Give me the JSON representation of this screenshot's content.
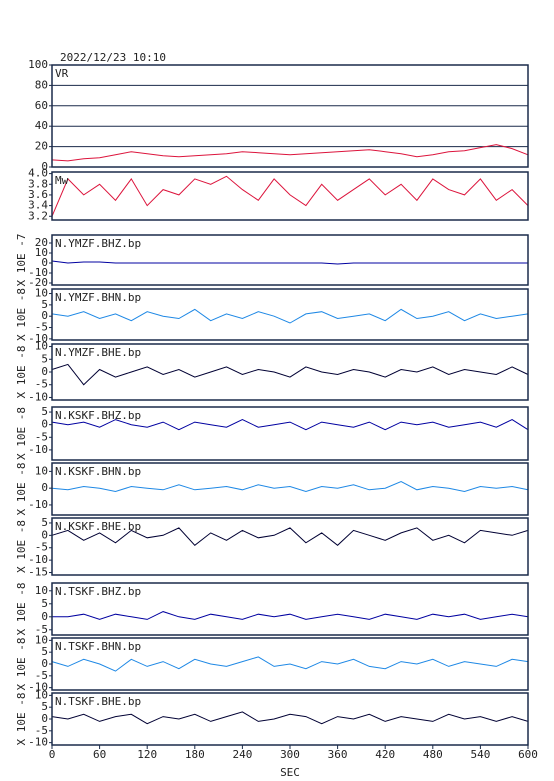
{
  "title": "2022/12/23 10:10",
  "chart_data": [
    {
      "type": "line",
      "title": "VR",
      "color": "#dc143c",
      "grid": true,
      "x": [
        0,
        20,
        40,
        60,
        80,
        100,
        120,
        140,
        160,
        180,
        200,
        220,
        240,
        260,
        280,
        300,
        320,
        340,
        360,
        380,
        400,
        420,
        440,
        460,
        480,
        500,
        520,
        540,
        560,
        580,
        600
      ],
      "values": [
        7,
        6,
        8,
        9,
        12,
        15,
        13,
        11,
        10,
        11,
        12,
        13,
        15,
        14,
        13,
        12,
        13,
        14,
        15,
        16,
        17,
        15,
        13,
        10,
        12,
        15,
        16,
        19,
        22,
        18,
        12
      ],
      "xlim": [
        0,
        600
      ],
      "ylim": [
        0,
        100
      ],
      "yticks": [
        0,
        20,
        40,
        60,
        80,
        100
      ]
    },
    {
      "type": "line",
      "title": "Mw",
      "color": "#dc143c",
      "x": [
        0,
        20,
        40,
        60,
        80,
        100,
        120,
        140,
        160,
        180,
        200,
        220,
        240,
        260,
        280,
        300,
        320,
        340,
        360,
        380,
        400,
        420,
        440,
        460,
        480,
        500,
        520,
        540,
        560,
        580,
        600
      ],
      "values": [
        3.2,
        3.9,
        3.6,
        3.8,
        3.5,
        3.9,
        3.4,
        3.7,
        3.6,
        3.9,
        3.8,
        3.95,
        3.7,
        3.5,
        3.9,
        3.6,
        3.4,
        3.8,
        3.5,
        3.7,
        3.9,
        3.6,
        3.8,
        3.5,
        3.9,
        3.7,
        3.6,
        3.9,
        3.5,
        3.7,
        3.4
      ],
      "xlim": [
        0,
        600
      ],
      "ylim": [
        3.13,
        4.03
      ],
      "yticks": [
        3.2,
        3.4,
        3.6,
        3.8,
        {
          "value": 4,
          "label": "4.0"
        }
      ]
    },
    {
      "type": "line",
      "title": "N.YMZF.BHZ.bp",
      "ylabel": "X 10E -7",
      "color": "#0000a0",
      "x": [
        0,
        20,
        40,
        60,
        80,
        100,
        120,
        140,
        160,
        180,
        200,
        220,
        240,
        260,
        280,
        300,
        320,
        340,
        360,
        380,
        400,
        420,
        440,
        460,
        480,
        500,
        520,
        540,
        560,
        580,
        600
      ],
      "values": [
        2,
        0,
        1,
        1,
        0,
        0,
        0,
        0,
        0,
        0,
        0,
        0,
        0,
        0,
        0,
        0,
        0,
        0,
        -1,
        0,
        0,
        0,
        0,
        0,
        0,
        0,
        0,
        0,
        0,
        0,
        0
      ],
      "xlim": [
        0,
        600
      ],
      "ylim": [
        -22,
        28
      ],
      "yticks": [
        -20,
        -10,
        0,
        10,
        20
      ]
    },
    {
      "type": "line",
      "title": "N.YMZF.BHN.bp",
      "ylabel": "X 10E -8",
      "color": "#1e88e5",
      "x": [
        0,
        20,
        40,
        60,
        80,
        100,
        120,
        140,
        160,
        180,
        200,
        220,
        240,
        260,
        280,
        300,
        320,
        340,
        360,
        380,
        400,
        420,
        440,
        460,
        480,
        500,
        520,
        540,
        560,
        580,
        600
      ],
      "values": [
        1,
        0,
        2,
        -1,
        1,
        -2,
        2,
        0,
        -1,
        3,
        -2,
        1,
        -1,
        2,
        0,
        -3,
        1,
        2,
        -1,
        0,
        1,
        -2,
        3,
        -1,
        0,
        2,
        -2,
        1,
        -1,
        0,
        1
      ],
      "xlim": [
        0,
        600
      ],
      "ylim": [
        -10.5,
        12
      ],
      "yticks": [
        -10,
        -5,
        0,
        5,
        10
      ]
    },
    {
      "type": "line",
      "title": "N.YMZF.BHE.bp",
      "ylabel": "X 10E -8",
      "color": "#000033",
      "x": [
        0,
        20,
        40,
        60,
        80,
        100,
        120,
        140,
        160,
        180,
        200,
        220,
        240,
        260,
        280,
        300,
        320,
        340,
        360,
        380,
        400,
        420,
        440,
        460,
        480,
        500,
        520,
        540,
        560,
        580,
        600
      ],
      "values": [
        1,
        3,
        -5,
        1,
        -2,
        0,
        2,
        -1,
        1,
        -2,
        0,
        2,
        -1,
        1,
        0,
        -2,
        2,
        0,
        -1,
        1,
        0,
        -2,
        1,
        0,
        2,
        -1,
        1,
        0,
        -1,
        2,
        -1
      ],
      "xlim": [
        0,
        600
      ],
      "ylim": [
        -11,
        11
      ],
      "yticks": [
        -10,
        -5,
        0,
        5,
        10
      ]
    },
    {
      "type": "line",
      "title": "N.KSKF.BHZ.bp",
      "ylabel": "X 10E -8",
      "color": "#0000a0",
      "x": [
        0,
        20,
        40,
        60,
        80,
        100,
        120,
        140,
        160,
        180,
        200,
        220,
        240,
        260,
        280,
        300,
        320,
        340,
        360,
        380,
        400,
        420,
        440,
        460,
        480,
        500,
        520,
        540,
        560,
        580,
        600
      ],
      "values": [
        1,
        0,
        1,
        -1,
        2,
        0,
        -1,
        1,
        -2,
        1,
        0,
        -1,
        2,
        -1,
        0,
        1,
        -2,
        1,
        0,
        -1,
        1,
        -2,
        1,
        0,
        1,
        -1,
        0,
        1,
        -1,
        2,
        -2
      ],
      "xlim": [
        0,
        600
      ],
      "ylim": [
        -14,
        7
      ],
      "yticks": [
        -10,
        -5,
        0,
        5
      ]
    },
    {
      "type": "line",
      "title": "N.KSKF.BHN.bp",
      "ylabel": "X 10E -8",
      "color": "#1e88e5",
      "x": [
        0,
        20,
        40,
        60,
        80,
        100,
        120,
        140,
        160,
        180,
        200,
        220,
        240,
        260,
        280,
        300,
        320,
        340,
        360,
        380,
        400,
        420,
        440,
        460,
        480,
        500,
        520,
        540,
        560,
        580,
        600
      ],
      "values": [
        0,
        -1,
        1,
        0,
        -2,
        1,
        0,
        -1,
        2,
        -1,
        0,
        1,
        -1,
        2,
        0,
        1,
        -2,
        1,
        0,
        2,
        -1,
        0,
        4,
        -1,
        1,
        0,
        -2,
        1,
        0,
        1,
        -1
      ],
      "xlim": [
        0,
        600
      ],
      "ylim": [
        -16,
        15
      ],
      "yticks": [
        -10,
        0,
        10
      ]
    },
    {
      "type": "line",
      "title": "N.KSKF.BHE.bp",
      "ylabel": "X 10E -8",
      "color": "#000033",
      "x": [
        0,
        20,
        40,
        60,
        80,
        100,
        120,
        140,
        160,
        180,
        200,
        220,
        240,
        260,
        280,
        300,
        320,
        340,
        360,
        380,
        400,
        420,
        440,
        460,
        480,
        500,
        520,
        540,
        560,
        580,
        600
      ],
      "values": [
        0,
        2,
        -2,
        1,
        -3,
        2,
        -1,
        0,
        3,
        -4,
        1,
        -2,
        2,
        -1,
        0,
        3,
        -3,
        1,
        -4,
        2,
        0,
        -2,
        1,
        3,
        -2,
        0,
        -3,
        2,
        1,
        0,
        2
      ],
      "xlim": [
        0,
        600
      ],
      "ylim": [
        -16,
        7
      ],
      "yticks": [
        -15,
        -10,
        -5,
        0,
        5
      ]
    },
    {
      "type": "line",
      "title": "N.TSKF.BHZ.bp",
      "ylabel": "X 10E -8",
      "color": "#0000a0",
      "x": [
        0,
        20,
        40,
        60,
        80,
        100,
        120,
        140,
        160,
        180,
        200,
        220,
        240,
        260,
        280,
        300,
        320,
        340,
        360,
        380,
        400,
        420,
        440,
        460,
        480,
        500,
        520,
        540,
        560,
        580,
        600
      ],
      "values": [
        0,
        0,
        1,
        -1,
        1,
        0,
        -1,
        2,
        0,
        -1,
        1,
        0,
        -1,
        1,
        0,
        1,
        -1,
        0,
        1,
        0,
        -1,
        1,
        0,
        -1,
        1,
        0,
        1,
        -1,
        0,
        1,
        0
      ],
      "xlim": [
        0,
        600
      ],
      "ylim": [
        -7,
        13
      ],
      "yticks": [
        -5,
        0,
        5,
        10
      ]
    },
    {
      "type": "line",
      "title": "N.TSKF.BHN.bp",
      "ylabel": "X 10E -8",
      "color": "#1e88e5",
      "x": [
        0,
        20,
        40,
        60,
        80,
        100,
        120,
        140,
        160,
        180,
        200,
        220,
        240,
        260,
        280,
        300,
        320,
        340,
        360,
        380,
        400,
        420,
        440,
        460,
        480,
        500,
        520,
        540,
        560,
        580,
        600
      ],
      "values": [
        1,
        -1,
        2,
        0,
        -3,
        2,
        -1,
        1,
        -2,
        2,
        0,
        -1,
        1,
        3,
        -1,
        0,
        -2,
        1,
        0,
        2,
        -1,
        -2,
        1,
        0,
        2,
        -1,
        1,
        0,
        -1,
        2,
        1
      ],
      "xlim": [
        0,
        600
      ],
      "ylim": [
        -11,
        11
      ],
      "yticks": [
        -10,
        -5,
        0,
        5,
        10
      ]
    },
    {
      "type": "line",
      "title": "N.TSKF.BHE.bp",
      "ylabel": "X 10E -8",
      "color": "#000033",
      "xlabel": "SEC",
      "x": [
        0,
        20,
        40,
        60,
        80,
        100,
        120,
        140,
        160,
        180,
        200,
        220,
        240,
        260,
        280,
        300,
        320,
        340,
        360,
        380,
        400,
        420,
        440,
        460,
        480,
        500,
        520,
        540,
        560,
        580,
        600
      ],
      "values": [
        1,
        0,
        2,
        -1,
        1,
        2,
        -2,
        1,
        0,
        2,
        -1,
        1,
        3,
        -1,
        0,
        2,
        1,
        -2,
        1,
        0,
        2,
        -1,
        1,
        0,
        -1,
        2,
        0,
        1,
        -1,
        1,
        -1
      ],
      "xlim": [
        0,
        600
      ],
      "ylim": [
        -11,
        11
      ],
      "yticks": [
        -10,
        -5,
        0,
        5,
        10
      ],
      "xticks": [
        0,
        60,
        120,
        180,
        240,
        300,
        360,
        420,
        480,
        540,
        600
      ]
    }
  ]
}
